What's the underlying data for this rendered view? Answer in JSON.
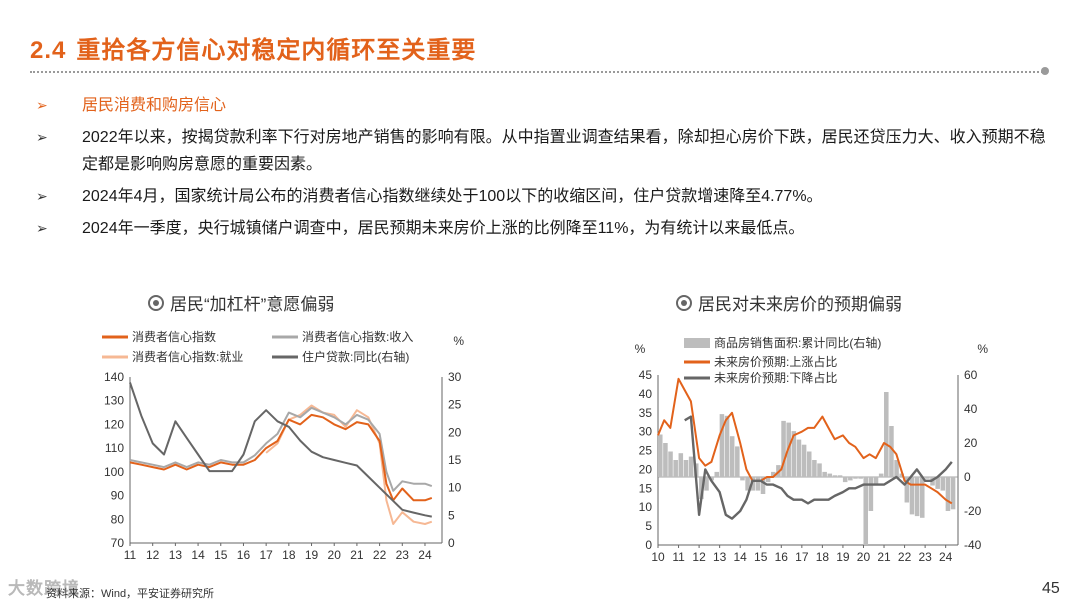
{
  "header": {
    "number": "2.4",
    "title": "重拾各方信心对稳定内循环至关重要"
  },
  "bullets": [
    {
      "text": "居民消费和购房信心",
      "highlight": true
    },
    {
      "text": "2022年以来，按揭贷款利率下行对房地产销售的影响有限。从中指置业调查结果看，除却担心房价下跌，居民还贷压力大、收入预期不稳定都是影响购房意愿的重要因素。"
    },
    {
      "text": "2024年4月，国家统计局公布的消费者信心指数继续处于100以下的收缩区间，住户贷款增速降至4.77%。"
    },
    {
      "text": "2024年一季度，央行城镇储户调查中，居民预期未来房价上涨的比例降至11%，为有统计以来最低点。"
    }
  ],
  "colors": {
    "accent": "#e2621b",
    "gray": "#a8a8a8",
    "peach": "#f6b894",
    "dark": "#666666"
  },
  "footer": {
    "source": "资料来源：Wind，平安证券研究所",
    "page": "45",
    "watermark": "大数跨境"
  },
  "chart_data": [
    {
      "type": "line",
      "title": "居民“加杠杆”意愿偏弱",
      "left_unit": "",
      "right_unit": "%",
      "ylim_left": [
        70,
        140
      ],
      "ylim_right": [
        0,
        30
      ],
      "left_ticks": [
        "140",
        "130",
        "120",
        "110",
        "100",
        "90",
        "80",
        "70"
      ],
      "right_ticks": [
        "30",
        "25",
        "20",
        "15",
        "10",
        "5",
        "0"
      ],
      "x_ticks": [
        "11",
        "12",
        "13",
        "14",
        "15",
        "16",
        "17",
        "18",
        "19",
        "20",
        "21",
        "22",
        "23",
        "24"
      ],
      "legend": [
        "消费者信心指数",
        "消费者信心指数:收入",
        "消费者信心指数:就业",
        "住户贷款:同比(右轴)"
      ],
      "series": [
        {
          "name": "消费者信心指数",
          "axis": "left",
          "x": [
            2011,
            2011.5,
            2012,
            2012.5,
            2013,
            2013.5,
            2014,
            2014.5,
            2015,
            2015.5,
            2016,
            2016.5,
            2017,
            2017.5,
            2018,
            2018.5,
            2019,
            2019.5,
            2020,
            2020.5,
            2021,
            2021.5,
            2022,
            2022.3,
            2022.6,
            2023,
            2023.5,
            2024,
            2024.3
          ],
          "y": [
            104,
            103,
            102,
            101,
            103,
            101,
            103,
            102,
            104,
            103,
            103,
            105,
            110,
            113,
            122,
            120,
            124,
            123,
            120,
            118,
            121,
            120,
            113,
            95,
            88,
            93,
            88,
            88,
            89
          ]
        },
        {
          "name": "消费者信心指数:收入",
          "axis": "left",
          "x": [
            2011,
            2011.5,
            2012,
            2012.5,
            2013,
            2013.5,
            2014,
            2014.5,
            2015,
            2015.5,
            2016,
            2016.5,
            2017,
            2017.5,
            2018,
            2018.5,
            2019,
            2019.5,
            2020,
            2020.5,
            2021,
            2021.5,
            2022,
            2022.3,
            2022.6,
            2023,
            2023.5,
            2024,
            2024.3
          ],
          "y": [
            105,
            104,
            103,
            102,
            104,
            102,
            104,
            103,
            105,
            104,
            104,
            107,
            112,
            116,
            125,
            123,
            127,
            125,
            123,
            120,
            124,
            122,
            116,
            100,
            92,
            96,
            95,
            95,
            94
          ]
        },
        {
          "name": "消费者信心指数:就业",
          "axis": "left",
          "x": [
            2017,
            2017.5,
            2018,
            2018.5,
            2019,
            2019.5,
            2020,
            2020.5,
            2021,
            2021.5,
            2022,
            2022.3,
            2022.6,
            2023,
            2023.5,
            2024,
            2024.3
          ],
          "y": [
            108,
            112,
            122,
            124,
            128,
            125,
            124,
            119,
            126,
            123,
            112,
            88,
            78,
            83,
            79,
            78,
            79
          ]
        },
        {
          "name": "住户贷款:同比(右轴)",
          "axis": "right",
          "x": [
            2011,
            2011.5,
            2012,
            2012.5,
            2013,
            2013.5,
            2014,
            2014.5,
            2015,
            2015.5,
            2016,
            2016.5,
            2017,
            2017.5,
            2018,
            2018.5,
            2019,
            2019.5,
            2020,
            2020.5,
            2021,
            2021.5,
            2022,
            2022.5,
            2023,
            2023.5,
            2024,
            2024.3
          ],
          "y": [
            29,
            23,
            18,
            16,
            22,
            19,
            16,
            13,
            13,
            13,
            16,
            22,
            24,
            22,
            21,
            18.5,
            16.5,
            15.5,
            15,
            14.5,
            14,
            12,
            10,
            8,
            6,
            5.5,
            5,
            4.77
          ]
        }
      ]
    },
    {
      "type": "line",
      "title": "居民对未来房价的预期偏弱",
      "left_unit": "%",
      "right_unit": "%",
      "ylim_left": [
        0,
        45
      ],
      "ylim_right": [
        -40,
        60
      ],
      "left_ticks": [
        "45",
        "40",
        "35",
        "30",
        "25",
        "20",
        "15",
        "10",
        "5",
        "0"
      ],
      "right_ticks": [
        "60",
        "40",
        "20",
        "0",
        "-20",
        "-40"
      ],
      "x_ticks": [
        "10",
        "11",
        "12",
        "13",
        "14",
        "15",
        "16",
        "17",
        "18",
        "19",
        "20",
        "21",
        "22",
        "23",
        "24"
      ],
      "legend": [
        "商品房销售面积:累计同比(右轴)",
        "未来房价预期:上涨占比",
        "未来房价预期:下降占比"
      ],
      "bars": {
        "name": "商品房销售面积:累计同比(右轴)",
        "axis": "right",
        "x": [
          2010,
          2010.25,
          2010.5,
          2010.75,
          2011,
          2011.25,
          2011.5,
          2011.75,
          2012,
          2012.25,
          2012.5,
          2012.75,
          2013,
          2013.25,
          2013.5,
          2013.75,
          2014,
          2014.25,
          2014.5,
          2014.75,
          2015,
          2015.25,
          2015.5,
          2015.75,
          2016,
          2016.25,
          2016.5,
          2016.75,
          2017,
          2017.25,
          2017.5,
          2017.75,
          2018,
          2018.25,
          2018.5,
          2018.75,
          2019,
          2019.25,
          2019.5,
          2019.75,
          2020,
          2020.25,
          2020.5,
          2020.75,
          2021,
          2021.25,
          2021.5,
          2021.75,
          2022,
          2022.25,
          2022.5,
          2022.75,
          2023,
          2023.25,
          2023.5,
          2023.75,
          2024,
          2024.25
        ],
        "y": [
          25,
          20,
          15,
          10,
          14,
          10,
          12,
          8,
          -13,
          -8,
          -2,
          3,
          37,
          36,
          24,
          18,
          -2,
          -8,
          -8,
          -8,
          -10,
          -3,
          3,
          7,
          33,
          32,
          27,
          22,
          19,
          15,
          10,
          8,
          3,
          2,
          1,
          1,
          -3,
          -2,
          -1,
          -1,
          -40,
          -20,
          -5,
          2,
          50,
          30,
          10,
          2,
          -15,
          -22,
          -23,
          -24,
          -1,
          -5,
          -7,
          -8,
          -20,
          -19
        ]
      },
      "series": [
        {
          "name": "未来房价预期:上涨占比",
          "axis": "left",
          "x": [
            2010,
            2010.3,
            2010.6,
            2011,
            2011.3,
            2011.6,
            2012,
            2012.3,
            2012.6,
            2013,
            2013.3,
            2013.6,
            2014,
            2014.3,
            2014.6,
            2015,
            2015.3,
            2015.6,
            2016,
            2016.3,
            2016.6,
            2017,
            2017.3,
            2017.6,
            2018,
            2018.3,
            2018.6,
            2019,
            2019.3,
            2019.6,
            2020,
            2020.3,
            2020.6,
            2021,
            2021.3,
            2021.6,
            2022,
            2022.3,
            2022.6,
            2023,
            2023.3,
            2023.6,
            2024,
            2024.3
          ],
          "y": [
            29,
            33,
            31,
            44,
            41,
            38,
            23,
            21,
            22,
            29,
            33,
            35,
            27,
            20,
            17,
            17,
            18,
            18,
            20,
            25,
            29,
            30,
            31,
            31,
            34,
            31,
            28,
            29,
            27,
            26,
            23,
            24,
            23,
            27,
            26,
            24,
            17,
            16,
            16,
            16,
            15,
            14,
            12,
            11
          ]
        },
        {
          "name": "未来房价预期:下降占比",
          "axis": "left",
          "x": [
            2011.3,
            2011.6,
            2012,
            2012.3,
            2012.6,
            2013,
            2013.3,
            2013.6,
            2014,
            2014.3,
            2014.6,
            2015,
            2015.3,
            2015.6,
            2016,
            2016.3,
            2016.6,
            2017,
            2017.3,
            2017.6,
            2018,
            2018.3,
            2018.6,
            2019,
            2019.3,
            2019.6,
            2020,
            2020.3,
            2020.6,
            2021,
            2021.3,
            2021.6,
            2022,
            2022.3,
            2022.6,
            2023,
            2023.3,
            2023.6,
            2024,
            2024.3
          ],
          "y": [
            33,
            34,
            8,
            20,
            17,
            14,
            8,
            7,
            9,
            12,
            17,
            17,
            16,
            16,
            15,
            13,
            12,
            12,
            11,
            12,
            12,
            12,
            13,
            14,
            15,
            15,
            16,
            16,
            16,
            16,
            17,
            18,
            16,
            18,
            20,
            17,
            17,
            18,
            20,
            22
          ]
        }
      ]
    }
  ]
}
